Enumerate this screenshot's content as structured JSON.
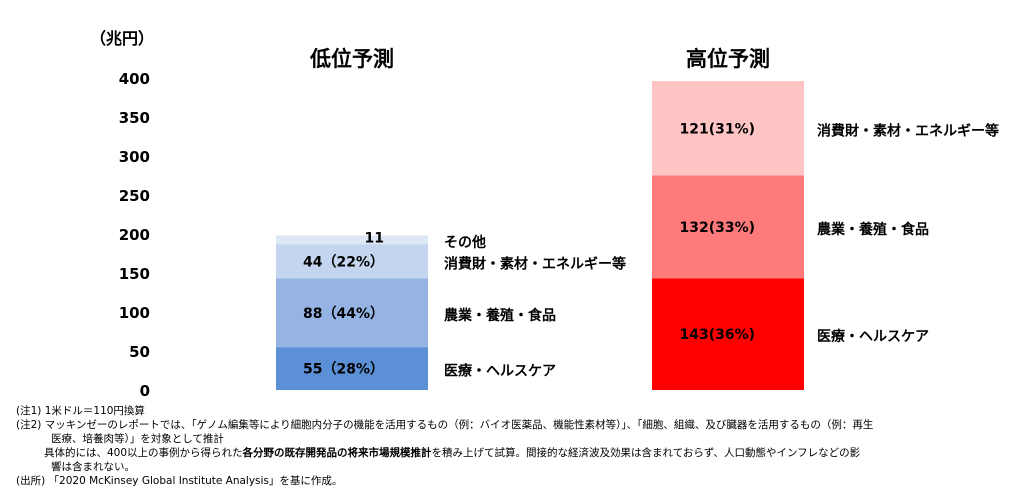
{
  "chart_data": {
    "type": "bar",
    "stacked": true,
    "unit_label": "（兆円）",
    "ylim": [
      0,
      400
    ],
    "yticks": [
      0,
      50,
      100,
      150,
      200,
      250,
      300,
      350,
      400
    ],
    "grid": false,
    "categories": [
      "低位予測",
      "高位予測"
    ],
    "series": [
      {
        "name": "医療・ヘルスケア",
        "values": [
          55,
          143
        ],
        "value_labels": [
          "55（28%）",
          "143(36%)"
        ],
        "colors": [
          "#5b8fd6",
          "#ff0000"
        ]
      },
      {
        "name": "農業・養殖・食品",
        "values": [
          88,
          132
        ],
        "value_labels": [
          "88（44%）",
          "132(33%)"
        ],
        "colors": [
          "#95b3e3",
          "#ff7a7a"
        ]
      },
      {
        "name": "消費財・素材・エネルギー等",
        "values": [
          44,
          121
        ],
        "value_labels": [
          "44（22%）",
          "121(31%)"
        ],
        "colors": [
          "#c3d5ef",
          "#ffc4c4"
        ]
      },
      {
        "name": "その他",
        "values": [
          11,
          null
        ],
        "value_labels": [
          "11",
          ""
        ],
        "colors": [
          "#dde7f5",
          null
        ]
      }
    ]
  },
  "notes": {
    "note1": "(注1) 1米ドル＝110円換算",
    "note2_line1": "(注2) マッキンゼーのレポートでは、「ゲノム編集等により細胞内分子の機能を活用するもの（例：バイオ医薬品、機能性素材等）」、「細胞、組織、及び臓器を活用するもの（例：再生",
    "note2_line2": "医療、培養肉等）」を対象として推計",
    "note3_before": "具体的には、400以上の事例から得られた",
    "note3_bold": "各分野の既存開発品の将来市場規模推計",
    "note3_after": "を積み上げて試算。間接的な経済波及効果は含まれておらず、人口動態やインフレなどの影",
    "note3_line2": "響は含まれない。",
    "source": "(出所) 「2020 McKinsey Global Institute Analysis」を基に作成。"
  }
}
